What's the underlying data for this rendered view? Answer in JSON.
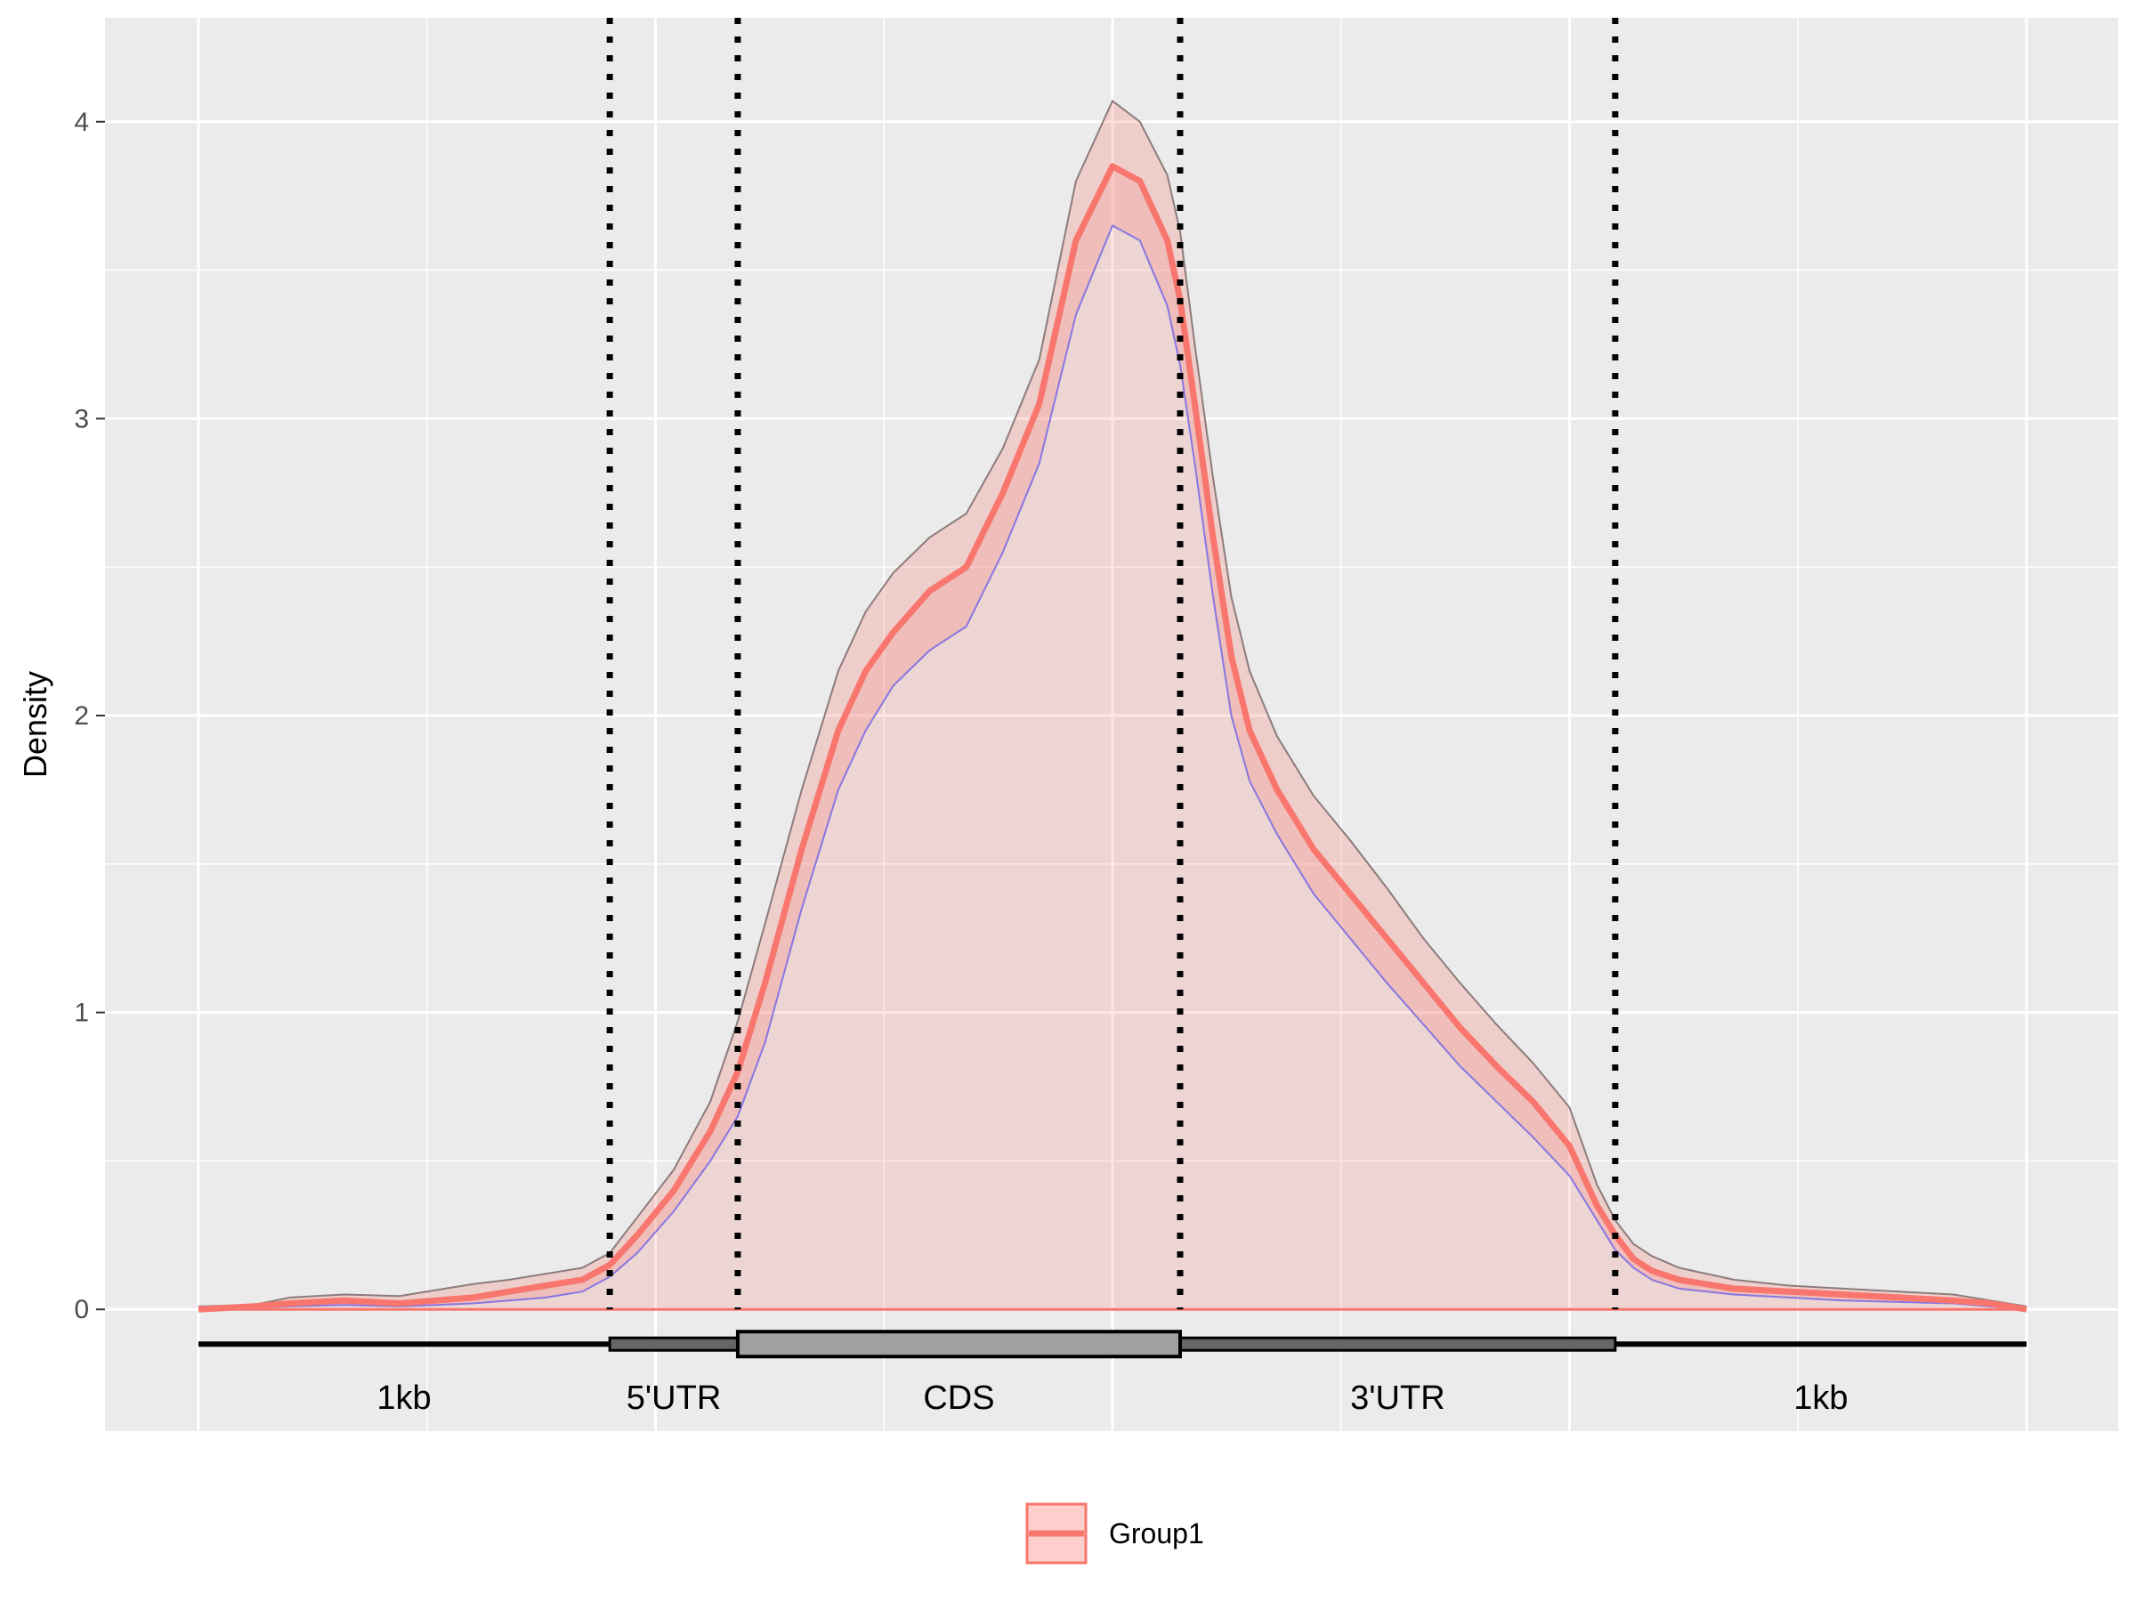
{
  "chart_data": {
    "type": "area",
    "title": "",
    "xlabel": "",
    "ylabel": "Density",
    "ylim": [
      -0.41,
      4.35
    ],
    "yticks": [
      0,
      1,
      2,
      3,
      4
    ],
    "grid": true,
    "legend_position": "bottom",
    "colors": {
      "panel_bg": "#ebebeb",
      "grid": "#ffffff",
      "series": "#f8766d",
      "fill": "#f8766d",
      "upper_band": "#8c7c7c",
      "lower_band": "#8877e0",
      "gene_box": "#a0a0a0",
      "utr_box": "#666666"
    },
    "regions": [
      {
        "label": "1kb",
        "start": 0.0,
        "end": 0.225
      },
      {
        "label": "5'UTR",
        "start": 0.225,
        "end": 0.295
      },
      {
        "label": "CDS",
        "start": 0.295,
        "end": 0.537
      },
      {
        "label": "3'UTR",
        "start": 0.537,
        "end": 0.775
      },
      {
        "label": "1kb",
        "start": 0.775,
        "end": 1.0
      }
    ],
    "boundaries": [
      0.225,
      0.295,
      0.537,
      0.775
    ],
    "series": [
      {
        "name": "Group1",
        "x": [
          0,
          0.03,
          0.05,
          0.08,
          0.11,
          0.13,
          0.15,
          0.17,
          0.19,
          0.21,
          0.225,
          0.24,
          0.26,
          0.28,
          0.295,
          0.31,
          0.33,
          0.35,
          0.365,
          0.38,
          0.4,
          0.42,
          0.44,
          0.46,
          0.48,
          0.5,
          0.515,
          0.53,
          0.537,
          0.545,
          0.555,
          0.565,
          0.575,
          0.59,
          0.61,
          0.63,
          0.65,
          0.67,
          0.69,
          0.71,
          0.73,
          0.75,
          0.765,
          0.775,
          0.785,
          0.795,
          0.81,
          0.84,
          0.87,
          0.9,
          0.93,
          0.96,
          0.98,
          1.0
        ],
        "y": [
          0.0,
          0.01,
          0.02,
          0.03,
          0.02,
          0.03,
          0.04,
          0.06,
          0.08,
          0.1,
          0.15,
          0.25,
          0.4,
          0.6,
          0.8,
          1.1,
          1.55,
          1.95,
          2.15,
          2.28,
          2.42,
          2.5,
          2.75,
          3.05,
          3.6,
          3.85,
          3.8,
          3.6,
          3.4,
          3.05,
          2.6,
          2.2,
          1.95,
          1.75,
          1.55,
          1.4,
          1.25,
          1.1,
          0.95,
          0.82,
          0.7,
          0.55,
          0.35,
          0.25,
          0.17,
          0.13,
          0.1,
          0.07,
          0.06,
          0.05,
          0.04,
          0.03,
          0.02,
          0.0
        ],
        "upper": [
          0.01,
          0.015,
          0.04,
          0.05,
          0.045,
          0.065,
          0.085,
          0.1,
          0.12,
          0.14,
          0.19,
          0.31,
          0.47,
          0.7,
          0.97,
          1.3,
          1.75,
          2.15,
          2.35,
          2.48,
          2.6,
          2.68,
          2.9,
          3.2,
          3.8,
          4.07,
          4.0,
          3.82,
          3.63,
          3.25,
          2.8,
          2.4,
          2.15,
          1.93,
          1.73,
          1.58,
          1.42,
          1.25,
          1.1,
          0.96,
          0.83,
          0.68,
          0.42,
          0.3,
          0.22,
          0.18,
          0.14,
          0.1,
          0.08,
          0.07,
          0.06,
          0.05,
          0.03,
          0.01
        ],
        "lower": [
          0.0,
          0.005,
          0.01,
          0.015,
          0.01,
          0.015,
          0.02,
          0.03,
          0.04,
          0.06,
          0.11,
          0.19,
          0.33,
          0.5,
          0.65,
          0.9,
          1.35,
          1.75,
          1.95,
          2.1,
          2.22,
          2.3,
          2.55,
          2.85,
          3.35,
          3.65,
          3.6,
          3.38,
          3.18,
          2.85,
          2.4,
          2.0,
          1.78,
          1.6,
          1.4,
          1.25,
          1.1,
          0.96,
          0.82,
          0.7,
          0.58,
          0.45,
          0.3,
          0.2,
          0.14,
          0.1,
          0.07,
          0.05,
          0.04,
          0.03,
          0.025,
          0.02,
          0.01,
          0.0
        ]
      }
    ]
  }
}
